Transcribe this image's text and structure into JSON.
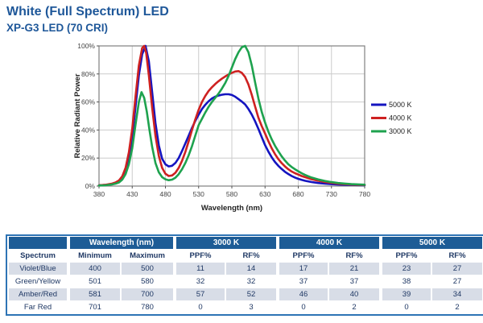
{
  "page": {
    "title": "White (Full Spectrum) LED",
    "subtitle": "XP-G3 LED (70 CRI)"
  },
  "colors": {
    "title_blue": "#1E5799",
    "table_header_blue": "#1D5C96",
    "table_border_blue": "#2E74B5",
    "table_alt_row": "#D8DDE7",
    "table_text_navy": "#1F3864",
    "series_5000k": "#1414C0",
    "series_4000k": "#CE2121",
    "series_3000k": "#1EA24E",
    "grid_gray": "#CCCCCC",
    "plot_border_gray": "#808080"
  },
  "chart_data": {
    "type": "line",
    "title": "",
    "xlabel": "Wavelength (nm)",
    "ylabel": "Relative Radiant Power",
    "xlim": [
      380,
      780
    ],
    "ylim": [
      0,
      100
    ],
    "x_ticks": [
      380,
      430,
      480,
      530,
      580,
      630,
      680,
      730,
      780
    ],
    "y_ticks": [
      0,
      20,
      40,
      60,
      80,
      100
    ],
    "y_tick_suffix": "%",
    "grid": true,
    "legend_position": "right",
    "series": [
      {
        "name": "5000 K",
        "color": "#1414C0",
        "points": [
          [
            380,
            0.5
          ],
          [
            390,
            0.8
          ],
          [
            400,
            1.5
          ],
          [
            405,
            2
          ],
          [
            410,
            3
          ],
          [
            415,
            5.5
          ],
          [
            420,
            10
          ],
          [
            425,
            19
          ],
          [
            430,
            35
          ],
          [
            435,
            57
          ],
          [
            440,
            79
          ],
          [
            445,
            94
          ],
          [
            450,
            100
          ],
          [
            455,
            89
          ],
          [
            460,
            67
          ],
          [
            465,
            45
          ],
          [
            470,
            29
          ],
          [
            475,
            19.5
          ],
          [
            480,
            15.5
          ],
          [
            485,
            14
          ],
          [
            490,
            14.5
          ],
          [
            495,
            16.5
          ],
          [
            500,
            20
          ],
          [
            505,
            25
          ],
          [
            510,
            30.5
          ],
          [
            515,
            36
          ],
          [
            520,
            41.5
          ],
          [
            525,
            46.5
          ],
          [
            530,
            51
          ],
          [
            535,
            55
          ],
          [
            540,
            58
          ],
          [
            545,
            60.5
          ],
          [
            550,
            62.5
          ],
          [
            555,
            63.8
          ],
          [
            560,
            64.6
          ],
          [
            565,
            65.2
          ],
          [
            570,
            65.5
          ],
          [
            575,
            65.5
          ],
          [
            580,
            65
          ],
          [
            585,
            63.8
          ],
          [
            590,
            62
          ],
          [
            595,
            60.3
          ],
          [
            600,
            58.3
          ],
          [
            605,
            55
          ],
          [
            610,
            51
          ],
          [
            615,
            46.2
          ],
          [
            620,
            40.8
          ],
          [
            625,
            35
          ],
          [
            630,
            29.2
          ],
          [
            635,
            24.6
          ],
          [
            640,
            20.6
          ],
          [
            645,
            17.2
          ],
          [
            650,
            14.4
          ],
          [
            655,
            12.2
          ],
          [
            660,
            10.2
          ],
          [
            665,
            8.6
          ],
          [
            670,
            7.2
          ],
          [
            675,
            6.1
          ],
          [
            680,
            5.2
          ],
          [
            685,
            4.4
          ],
          [
            690,
            3.8
          ],
          [
            700,
            2.9
          ],
          [
            710,
            2.2
          ],
          [
            720,
            1.7
          ],
          [
            730,
            1.4
          ],
          [
            740,
            1.1
          ],
          [
            750,
            0.9
          ],
          [
            760,
            0.8
          ],
          [
            770,
            0.7
          ],
          [
            780,
            0.6
          ]
        ]
      },
      {
        "name": "4000 K",
        "color": "#CE2121",
        "points": [
          [
            380,
            0.6
          ],
          [
            390,
            0.9
          ],
          [
            400,
            1.8
          ],
          [
            405,
            2.6
          ],
          [
            410,
            4
          ],
          [
            415,
            7
          ],
          [
            420,
            13
          ],
          [
            425,
            24
          ],
          [
            430,
            41
          ],
          [
            435,
            64
          ],
          [
            440,
            86
          ],
          [
            445,
            98.5
          ],
          [
            448,
            100
          ],
          [
            451,
            95
          ],
          [
            455,
            79
          ],
          [
            460,
            56
          ],
          [
            465,
            36
          ],
          [
            470,
            21.5
          ],
          [
            475,
            13
          ],
          [
            480,
            8.8
          ],
          [
            485,
            7.2
          ],
          [
            490,
            7.6
          ],
          [
            495,
            9.5
          ],
          [
            500,
            13
          ],
          [
            505,
            18
          ],
          [
            510,
            24.5
          ],
          [
            515,
            32
          ],
          [
            520,
            40
          ],
          [
            525,
            47.5
          ],
          [
            530,
            54.5
          ],
          [
            535,
            60
          ],
          [
            540,
            64.3
          ],
          [
            545,
            67.8
          ],
          [
            550,
            70.5
          ],
          [
            555,
            72.8
          ],
          [
            560,
            74.8
          ],
          [
            565,
            76.6
          ],
          [
            570,
            78.2
          ],
          [
            575,
            79.6
          ],
          [
            580,
            80.8
          ],
          [
            585,
            81.7
          ],
          [
            590,
            82
          ],
          [
            595,
            80.8
          ],
          [
            600,
            77.8
          ],
          [
            605,
            72.5
          ],
          [
            610,
            65
          ],
          [
            615,
            56.8
          ],
          [
            620,
            48.8
          ],
          [
            625,
            42.8
          ],
          [
            630,
            37.5
          ],
          [
            635,
            32
          ],
          [
            640,
            27
          ],
          [
            645,
            22.8
          ],
          [
            650,
            19.2
          ],
          [
            655,
            16.4
          ],
          [
            660,
            14
          ],
          [
            665,
            12
          ],
          [
            670,
            10.4
          ],
          [
            675,
            9.2
          ],
          [
            680,
            8.2
          ],
          [
            685,
            7.2
          ],
          [
            690,
            6.4
          ],
          [
            700,
            4.9
          ],
          [
            710,
            3.8
          ],
          [
            720,
            2.9
          ],
          [
            730,
            2.3
          ],
          [
            740,
            1.8
          ],
          [
            750,
            1.4
          ],
          [
            760,
            1.1
          ],
          [
            770,
            0.9
          ],
          [
            780,
            0.8
          ]
        ]
      },
      {
        "name": "3000 K",
        "color": "#1EA24E",
        "points": [
          [
            380,
            0.4
          ],
          [
            390,
            0.6
          ],
          [
            400,
            1.2
          ],
          [
            405,
            1.7
          ],
          [
            410,
            2.6
          ],
          [
            415,
            4.6
          ],
          [
            420,
            8.5
          ],
          [
            425,
            15.5
          ],
          [
            430,
            27
          ],
          [
            435,
            44
          ],
          [
            440,
            60
          ],
          [
            444,
            67
          ],
          [
            448,
            63
          ],
          [
            452,
            53
          ],
          [
            456,
            40
          ],
          [
            460,
            28
          ],
          [
            465,
            16.5
          ],
          [
            470,
            9.8
          ],
          [
            475,
            6.4
          ],
          [
            480,
            4.8
          ],
          [
            485,
            4.2
          ],
          [
            490,
            4.6
          ],
          [
            495,
            6
          ],
          [
            500,
            8.5
          ],
          [
            505,
            12
          ],
          [
            510,
            16.5
          ],
          [
            515,
            22
          ],
          [
            520,
            28.5
          ],
          [
            525,
            36
          ],
          [
            530,
            43.5
          ],
          [
            535,
            48
          ],
          [
            540,
            52.5
          ],
          [
            545,
            56.5
          ],
          [
            550,
            60
          ],
          [
            555,
            63
          ],
          [
            560,
            66
          ],
          [
            565,
            69.5
          ],
          [
            570,
            73.5
          ],
          [
            575,
            78.5
          ],
          [
            580,
            84.5
          ],
          [
            585,
            90.5
          ],
          [
            590,
            95.5
          ],
          [
            595,
            99
          ],
          [
            600,
            100
          ],
          [
            605,
            95.5
          ],
          [
            610,
            86
          ],
          [
            615,
            74
          ],
          [
            620,
            62.5
          ],
          [
            625,
            53
          ],
          [
            630,
            45.3
          ],
          [
            635,
            38.8
          ],
          [
            640,
            33.4
          ],
          [
            645,
            28.8
          ],
          [
            650,
            24.8
          ],
          [
            655,
            21.2
          ],
          [
            660,
            18.2
          ],
          [
            665,
            15.6
          ],
          [
            670,
            13.6
          ],
          [
            675,
            12
          ],
          [
            680,
            10.6
          ],
          [
            685,
            9.2
          ],
          [
            690,
            8
          ],
          [
            700,
            6.1
          ],
          [
            710,
            4.7
          ],
          [
            720,
            3.6
          ],
          [
            730,
            2.8
          ],
          [
            740,
            2.2
          ],
          [
            750,
            1.8
          ],
          [
            760,
            1.4
          ],
          [
            770,
            1.2
          ],
          [
            780,
            1
          ]
        ]
      }
    ]
  },
  "table": {
    "group_headers": [
      {
        "label": "",
        "span": 1
      },
      {
        "label": "Wavelength (nm)",
        "span": 2
      },
      {
        "label": "3000 K",
        "span": 2
      },
      {
        "label": "4000 K",
        "span": 2
      },
      {
        "label": "5000 K",
        "span": 2
      }
    ],
    "columns": [
      "Spectrum",
      "Minimum",
      "Maximum",
      "PPF%",
      "RF%",
      "PPF%",
      "RF%",
      "PPF%",
      "RF%"
    ],
    "rows": [
      [
        "Violet/Blue",
        "400",
        "500",
        "11",
        "14",
        "17",
        "21",
        "23",
        "27"
      ],
      [
        "Green/Yellow",
        "501",
        "580",
        "32",
        "32",
        "37",
        "37",
        "38",
        "27"
      ],
      [
        "Amber/Red",
        "581",
        "700",
        "57",
        "52",
        "46",
        "40",
        "39",
        "34"
      ],
      [
        "Far Red",
        "701",
        "780",
        "0",
        "3",
        "0",
        "2",
        "0",
        "2"
      ]
    ]
  }
}
